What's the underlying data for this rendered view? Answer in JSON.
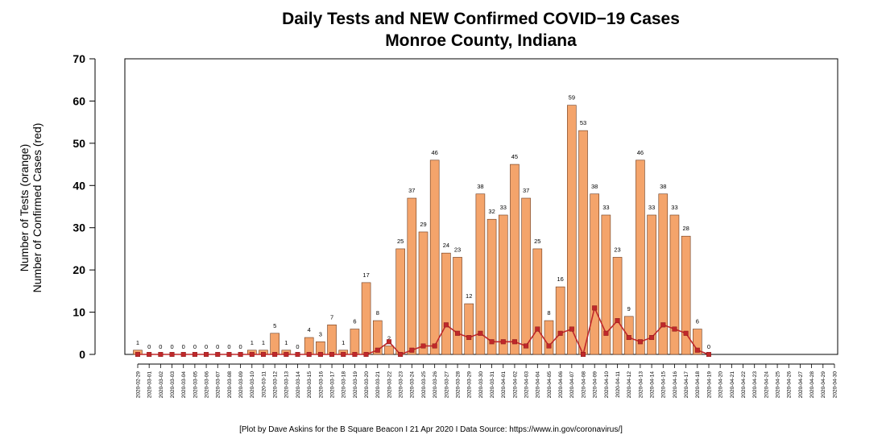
{
  "chart_data": {
    "type": "bar",
    "title": "Daily Tests and NEW Confirmed COVID−19 Cases",
    "subtitle": "Monroe County, Indiana",
    "ylabel_line1": "Number of Tests (orange)",
    "ylabel_line2": "Number of Confirmed Cases (red)",
    "ylim": [
      0,
      70
    ],
    "yticks": [
      0,
      10,
      20,
      30,
      40,
      50,
      60,
      70
    ],
    "grid": false,
    "caption": "[Plot by Dave Askins for the B Square Beacon I 21 Apr 2020 I Data Source: https://www.in.gov/coronavirus/]",
    "categories": [
      "2020-02-29",
      "2020-03-01",
      "2020-03-02",
      "2020-03-03",
      "2020-03-04",
      "2020-03-05",
      "2020-03-06",
      "2020-03-07",
      "2020-03-08",
      "2020-03-09",
      "2020-03-10",
      "2020-03-11",
      "2020-03-12",
      "2020-03-13",
      "2020-03-14",
      "2020-03-15",
      "2020-03-16",
      "2020-03-17",
      "2020-03-18",
      "2020-03-19",
      "2020-03-20",
      "2020-03-21",
      "2020-03-22",
      "2020-03-23",
      "2020-03-24",
      "2020-03-25",
      "2020-03-26",
      "2020-03-27",
      "2020-03-28",
      "2020-03-29",
      "2020-03-30",
      "2020-03-31",
      "2020-04-01",
      "2020-04-02",
      "2020-04-03",
      "2020-04-04",
      "2020-04-05",
      "2020-04-06",
      "2020-04-07",
      "2020-04-08",
      "2020-04-09",
      "2020-04-10",
      "2020-04-11",
      "2020-04-12",
      "2020-04-13",
      "2020-04-14",
      "2020-04-15",
      "2020-04-16",
      "2020-04-17",
      "2020-04-18",
      "2020-04-19",
      "2020-04-20",
      "2020-04-21",
      "2020-04-22",
      "2020-04-23",
      "2020-04-24",
      "2020-04-25",
      "2020-04-26",
      "2020-04-27",
      "2020-04-28",
      "2020-04-29",
      "2020-04-30"
    ],
    "series": [
      {
        "name": "Number of Tests",
        "type": "bar",
        "color": "#f4a46b",
        "edge_color": "#6b3a1e",
        "values": [
          1,
          0,
          0,
          0,
          0,
          0,
          0,
          0,
          0,
          0,
          1,
          1,
          5,
          1,
          0,
          4,
          3,
          7,
          1,
          6,
          17,
          8,
          2,
          25,
          37,
          29,
          46,
          24,
          23,
          12,
          38,
          32,
          33,
          45,
          37,
          25,
          8,
          16,
          59,
          53,
          38,
          33,
          23,
          9,
          46,
          33,
          38,
          33,
          28,
          6,
          0,
          null,
          null,
          null,
          null,
          null,
          null,
          null,
          null,
          null,
          null,
          null
        ]
      },
      {
        "name": "Number of Confirmed Cases",
        "type": "line",
        "color": "#c0282a",
        "values": [
          0,
          0,
          0,
          0,
          0,
          0,
          0,
          0,
          0,
          0,
          0,
          0,
          0,
          0,
          0,
          0,
          0,
          0,
          0,
          0,
          0,
          1,
          3,
          0,
          1,
          2,
          2,
          7,
          5,
          4,
          5,
          3,
          3,
          3,
          2,
          6,
          2,
          5,
          6,
          0,
          11,
          5,
          8,
          4,
          3,
          4,
          7,
          6,
          5,
          1,
          0,
          null,
          null,
          null,
          null,
          null,
          null,
          null,
          null,
          null,
          null,
          null
        ]
      }
    ]
  }
}
